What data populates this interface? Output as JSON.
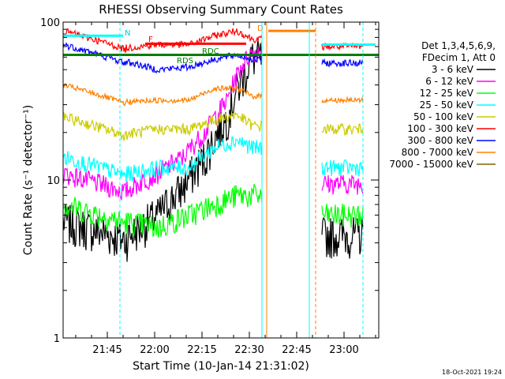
{
  "chart_data": {
    "type": "line",
    "title": "RHESSI Observing Summary Count Rates",
    "xlabel": "Start Time (10-Jan-14 21:31:02)",
    "ylabel": "Count Rate (s⁻¹ detector⁻¹)",
    "y_scale": "log",
    "ylim": [
      1,
      100
    ],
    "xlim_minutes": [
      0,
      100
    ],
    "x_ticks": [
      {
        "minute": 14,
        "label": "21:45"
      },
      {
        "minute": 29,
        "label": "22:00"
      },
      {
        "minute": 44,
        "label": "22:15"
      },
      {
        "minute": 59,
        "label": "22:30"
      },
      {
        "minute": 74,
        "label": "22:45"
      },
      {
        "minute": 89,
        "label": "23:00"
      }
    ],
    "y_ticks": [
      {
        "value": 1,
        "label": "1"
      },
      {
        "value": 10,
        "label": "10"
      },
      {
        "value": 100,
        "label": "100"
      }
    ],
    "legend_header": [
      "Det 1,3,4,5,6,9,",
      "FDecim 1, Att 0"
    ],
    "legend_placement": "right",
    "series": [
      {
        "name": "3 - 6 keV",
        "color": "#000000"
      },
      {
        "name": "6 - 12 keV",
        "color": "#ff00ff"
      },
      {
        "name": "12 - 25 keV",
        "color": "#00ff00"
      },
      {
        "name": "25 - 50 keV",
        "color": "#00ffff"
      },
      {
        "name": "50 - 100 keV",
        "color": "#cccc00"
      },
      {
        "name": "100 - 300 keV",
        "color": "#ff0000"
      },
      {
        "name": "300 - 800 keV",
        "color": "#0000ff"
      },
      {
        "name": "800 - 7000 keV",
        "color": "#ff8000"
      },
      {
        "name": "7000 - 15000 keV",
        "color": "#806000"
      }
    ],
    "annotations": [
      {
        "label": "N",
        "color": "#00cccc"
      },
      {
        "label": "F",
        "color": "#ff0000"
      },
      {
        "label": "RDC",
        "color": "#008000"
      },
      {
        "label": "RDS",
        "color": "#008000"
      },
      {
        "label": "D",
        "color": "#ff8000"
      }
    ],
    "footer_date": "18-Oct-2021 19:24"
  }
}
